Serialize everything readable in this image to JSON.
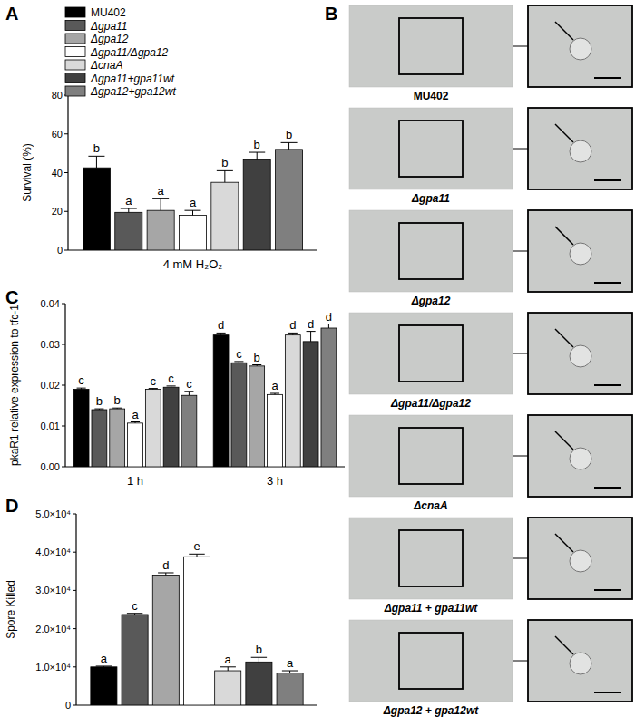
{
  "chart_data": [
    {
      "type": "bar",
      "panel": "A",
      "ylabel": "Survival (%)",
      "legend": "top",
      "categories": [
        "4 mM H₂O₂"
      ],
      "ylim": [
        0,
        80
      ],
      "yticks": [
        0,
        20,
        40,
        60,
        80
      ],
      "series": [
        {
          "name": "MU402",
          "color": "#000000",
          "values": [
            42.5
          ],
          "errors": [
            6
          ],
          "letters": [
            "b"
          ]
        },
        {
          "name": "Δgpa11",
          "color": "#595959",
          "values": [
            19.5
          ],
          "errors": [
            2
          ],
          "letters": [
            "a"
          ]
        },
        {
          "name": "Δgpa12",
          "color": "#a6a6a6",
          "values": [
            20.5
          ],
          "errors": [
            6
          ],
          "letters": [
            "a"
          ]
        },
        {
          "name": "Δgpa11/Δgpa12",
          "color": "#ffffff",
          "values": [
            18
          ],
          "errors": [
            2.5
          ],
          "letters": [
            "a"
          ]
        },
        {
          "name": "ΔcnaA",
          "color": "#d9d9d9",
          "values": [
            35
          ],
          "errors": [
            6
          ],
          "letters": [
            "b"
          ]
        },
        {
          "name": "Δgpa11+gpa11wt",
          "color": "#404040",
          "values": [
            47
          ],
          "errors": [
            3.5
          ],
          "letters": [
            "b"
          ]
        },
        {
          "name": "Δgpa12+gpa12wt",
          "color": "#7f7f7f",
          "values": [
            52
          ],
          "errors": [
            3.5
          ],
          "letters": [
            "b"
          ]
        }
      ]
    },
    {
      "type": "bar",
      "panel": "C",
      "ylabel": "pkaR1 relative expression to tfc-1",
      "categories": [
        "1 h",
        "3 h"
      ],
      "ylim": [
        0,
        0.04
      ],
      "yticks": [
        {
          "value": 0,
          "label": "0.00"
        },
        {
          "value": 0.01,
          "label": "0.01"
        },
        {
          "value": 0.02,
          "label": "0.02"
        },
        {
          "value": 0.03,
          "label": "0.03"
        },
        {
          "value": 0.04,
          "label": "0.04"
        }
      ],
      "series": [
        {
          "color": "#000000",
          "values": [
            0.019,
            0.0323
          ],
          "errors": [
            0.0003,
            0.0005
          ],
          "letters": [
            "c",
            "d"
          ]
        },
        {
          "color": "#595959",
          "values": [
            0.014,
            0.0255
          ],
          "errors": [
            0.0002,
            0.0003
          ],
          "letters": [
            "b",
            "c"
          ]
        },
        {
          "color": "#a6a6a6",
          "values": [
            0.0142,
            0.0247
          ],
          "errors": [
            0.0002,
            0.0003
          ],
          "letters": [
            "b",
            "b"
          ]
        },
        {
          "color": "#ffffff",
          "values": [
            0.0107,
            0.0177
          ],
          "errors": [
            0.0003,
            0.0003
          ],
          "letters": [
            "a",
            "a"
          ]
        },
        {
          "color": "#d9d9d9",
          "values": [
            0.019,
            0.0323
          ],
          "errors": [
            0.0002,
            0.0005
          ],
          "letters": [
            "c",
            "d"
          ]
        },
        {
          "color": "#404040",
          "values": [
            0.0195,
            0.0307
          ],
          "errors": [
            0.0003,
            0.0025
          ],
          "letters": [
            "c",
            "d"
          ]
        },
        {
          "color": "#7f7f7f",
          "values": [
            0.0175,
            0.034
          ],
          "errors": [
            0.001,
            0.001
          ],
          "letters": [
            "c",
            "d"
          ]
        }
      ]
    },
    {
      "type": "bar",
      "panel": "D",
      "ylabel": "Spore Killed",
      "categories": [
        null
      ],
      "ylim": [
        0,
        50000
      ],
      "yticks": [
        {
          "value": 0,
          "label": "0"
        },
        {
          "value": 10000,
          "label": "1.0×10⁴"
        },
        {
          "value": 20000,
          "label": "2.0×10⁴"
        },
        {
          "value": 30000,
          "label": "3.0×10⁴"
        },
        {
          "value": 40000,
          "label": "4.0×10⁴"
        },
        {
          "value": 50000,
          "label": "5.0×10⁴"
        }
      ],
      "series": [
        {
          "color": "#000000",
          "values": [
            10000
          ],
          "errors": [
            200
          ],
          "letters": [
            "a"
          ]
        },
        {
          "color": "#595959",
          "values": [
            23700
          ],
          "errors": [
            300
          ],
          "letters": [
            "c"
          ]
        },
        {
          "color": "#a6a6a6",
          "values": [
            34000
          ],
          "errors": [
            600
          ],
          "letters": [
            "d"
          ]
        },
        {
          "color": "#ffffff",
          "values": [
            38800
          ],
          "errors": [
            700
          ],
          "letters": [
            "e"
          ]
        },
        {
          "color": "#d9d9d9",
          "values": [
            9000
          ],
          "errors": [
            1000
          ],
          "letters": [
            "a"
          ]
        },
        {
          "color": "#404040",
          "values": [
            11300
          ],
          "errors": [
            1200
          ],
          "letters": [
            "b"
          ]
        },
        {
          "color": "#7f7f7f",
          "values": [
            8400
          ],
          "errors": [
            600
          ],
          "letters": [
            "a"
          ]
        }
      ]
    }
  ],
  "image_panel": {
    "panel": "B",
    "labels": [
      "MU402",
      "Δgpa11",
      "Δgpa12",
      "Δgpa11/Δgpa12",
      "ΔcnaA",
      "Δgpa11 + gpa11wt",
      "Δgpa12 + gpa12wt"
    ]
  }
}
